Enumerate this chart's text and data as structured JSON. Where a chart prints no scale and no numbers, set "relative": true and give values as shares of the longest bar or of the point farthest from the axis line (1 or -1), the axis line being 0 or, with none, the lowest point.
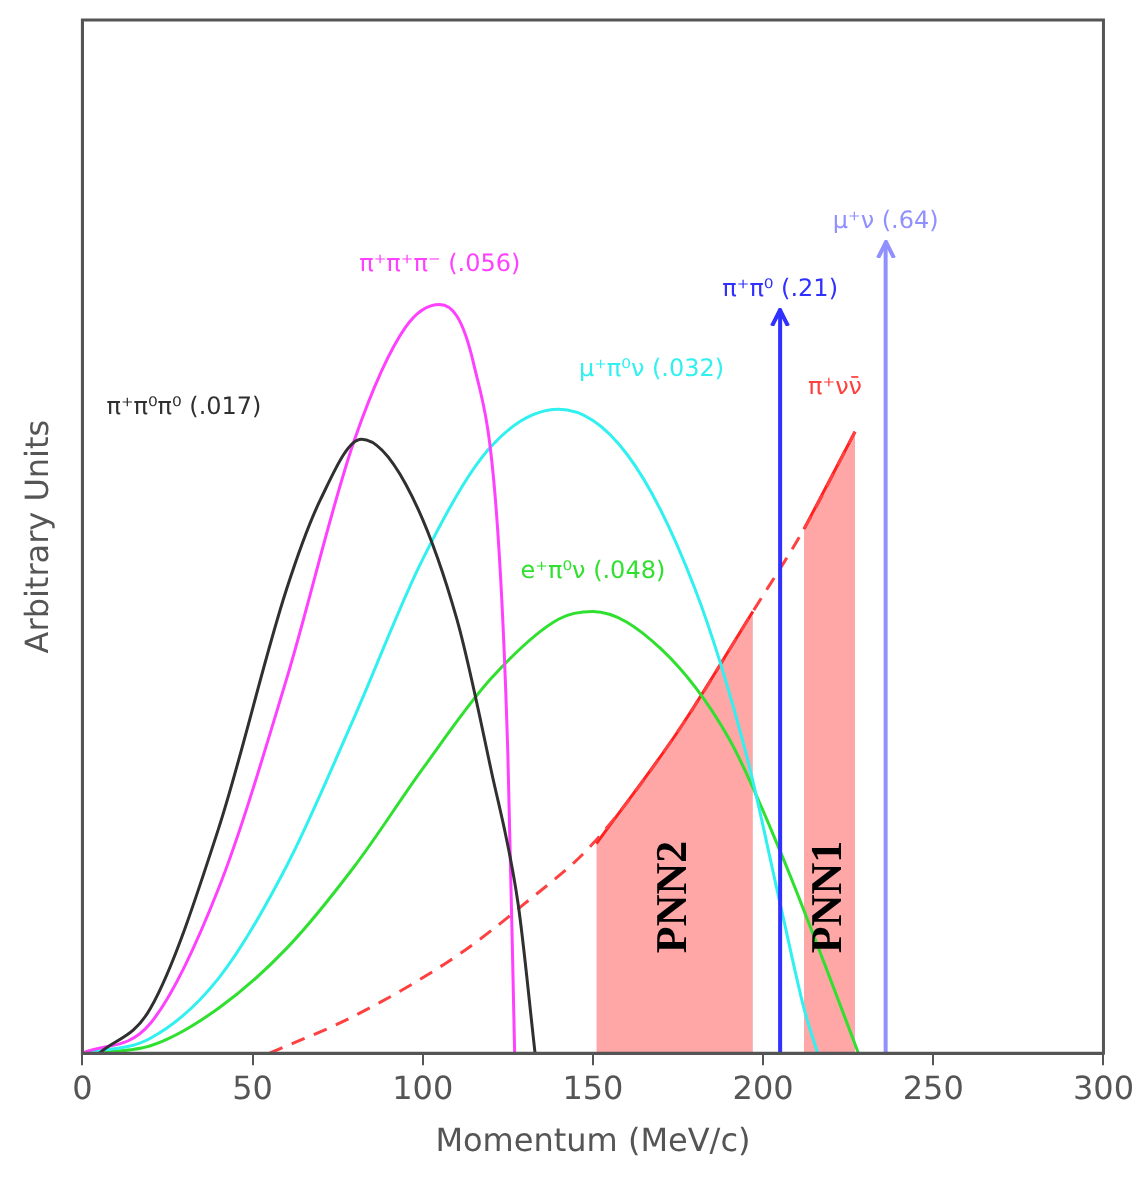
{
  "chart_data": {
    "type": "line",
    "relative": true,
    "xlabel": "Momentum (MeV/c)",
    "ylabel": "Arbitrary Units",
    "xlim": [
      0,
      300
    ],
    "xticks": [
      0,
      50,
      100,
      150,
      200,
      250,
      300
    ],
    "grid": false,
    "legend": false,
    "marker": "none",
    "series": [
      {
        "name": "π⁺π⁰π⁰ (.017)",
        "color": "#303030",
        "x": [
          5,
          20,
          40,
          60,
          70,
          82,
          95,
          110,
          120,
          128,
          133
        ],
        "values": [
          0,
          0.06,
          0.3,
          0.62,
          0.74,
          0.82,
          0.76,
          0.58,
          0.38,
          0.2,
          0
        ]
      },
      {
        "name": "π⁺π⁺π⁻ (.056)",
        "color": "#ff40ff",
        "x": [
          0,
          20,
          40,
          60,
          80,
          95,
          105,
          115,
          122,
          125,
          127
        ],
        "values": [
          0,
          0.04,
          0.22,
          0.5,
          0.82,
          0.97,
          1,
          0.92,
          0.7,
          0.4,
          0
        ]
      },
      {
        "name": "μ⁺π⁰ν (.032)",
        "color": "#30f0f0",
        "x": [
          0,
          20,
          40,
          60,
          80,
          100,
          120,
          140,
          160,
          180,
          195,
          205,
          212,
          216
        ],
        "values": [
          0,
          0.02,
          0.1,
          0.25,
          0.45,
          0.66,
          0.81,
          0.86,
          0.8,
          0.62,
          0.4,
          0.2,
          0.06,
          0
        ]
      },
      {
        "name": "e⁺π⁰ν (.048)",
        "color": "#30e030",
        "x": [
          0,
          20,
          40,
          60,
          80,
          100,
          120,
          140,
          150,
          170,
          190,
          205,
          218,
          228
        ],
        "values": [
          0,
          0.01,
          0.06,
          0.14,
          0.25,
          0.38,
          0.5,
          0.58,
          0.59,
          0.54,
          0.42,
          0.27,
          0.12,
          0
        ]
      },
      {
        "name": "π⁺νν̄",
        "color": "#ff4040",
        "line_style": "dashed",
        "x": [
          55,
          80,
          110,
          130,
          150,
          175,
          197,
          212,
          227
        ],
        "values": [
          0,
          0.05,
          0.13,
          0.2,
          0.28,
          0.43,
          0.59,
          0.7,
          0.83
        ]
      },
      {
        "name": "PNN2",
        "type": "area",
        "color": "#ff2020",
        "x": [
          151,
          175,
          197
        ],
        "values": [
          0.28,
          0.43,
          0.59
        ]
      },
      {
        "name": "PNN1",
        "type": "area",
        "color": "#ff2020",
        "x": [
          212,
          227
        ],
        "values": [
          0.7,
          0.83
        ]
      }
    ],
    "ref_lines": [
      {
        "axis": "x",
        "value": 205,
        "label": "π⁺π⁰ (.21)",
        "color": "#3030ff"
      },
      {
        "axis": "x",
        "value": 236,
        "label": "μ⁺ν (.64)",
        "color": "#9090ff"
      }
    ]
  }
}
